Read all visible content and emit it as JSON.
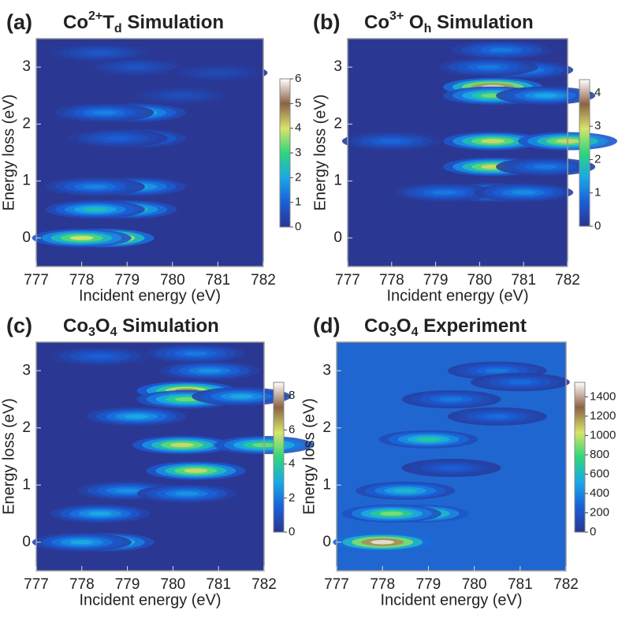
{
  "chart_data": [
    {
      "type": "heatmap",
      "panel": "(a)",
      "title": [
        {
          "text": "Co"
        },
        {
          "text": "2+",
          "shift": "super"
        },
        {
          "text": "T"
        },
        {
          "text": "d",
          "shift": "sub"
        },
        {
          "text": " Simulation"
        }
      ],
      "xlabel": "Incident energy (eV)",
      "ylabel": "Energy loss (eV)",
      "xlim": [
        777,
        782
      ],
      "xticks": [
        777,
        778,
        779,
        780,
        781,
        782
      ],
      "ylim": [
        -0.5,
        3.5
      ],
      "yticks": [
        0,
        1,
        2,
        3
      ],
      "x": [
        778.5,
        778.0,
        779.0,
        778.3,
        779.2,
        778.3,
        779.2,
        778.5,
        779.2,
        778.8,
        778.4,
        779.2,
        780.2,
        781.0
      ],
      "y": [
        0,
        0,
        0.5,
        0.5,
        0.9,
        0.9,
        2.2,
        2.2,
        1.75,
        1.75,
        3.25,
        3.0,
        2.5,
        2.9
      ],
      "values": [
        6,
        4,
        3,
        2.5,
        2.2,
        1.5,
        2.5,
        1.5,
        2,
        1,
        0.8,
        0.7,
        0.6,
        0.5
      ],
      "zlim": [
        0,
        6
      ],
      "zticks": [
        0,
        1,
        2,
        3,
        4,
        5,
        6
      ],
      "colors": [
        "#2a3590",
        "#1a5fd8",
        "#1aa8e8",
        "#2ed67a",
        "#d8e46a",
        "#8c6244",
        "#ffffff"
      ],
      "background": "#2b3893"
    },
    {
      "type": "heatmap",
      "panel": "(b)",
      "title": [
        {
          "text": "Co"
        },
        {
          "text": "3+",
          "shift": "super"
        },
        {
          "text": " O"
        },
        {
          "text": "h",
          "shift": "sub"
        },
        {
          "text": " Simulation"
        }
      ],
      "xlabel": "Incident energy (eV)",
      "ylabel": "Energy loss (eV)",
      "xlim": [
        777,
        782
      ],
      "xticks": [
        777,
        778,
        779,
        780,
        781,
        782
      ],
      "ylim": [
        -0.5,
        3.5
      ],
      "yticks": [
        0,
        1,
        2,
        3
      ],
      "x": [
        780.3,
        780.3,
        781.5,
        780.3,
        782.0,
        778.0,
        780.3,
        781.5,
        780.3,
        779.2,
        781.0,
        780.5,
        781.0,
        780.2
      ],
      "y": [
        2.65,
        2.5,
        2.5,
        1.7,
        1.7,
        1.7,
        1.25,
        1.25,
        0.8,
        0.8,
        0.8,
        3.3,
        2.95,
        3.0
      ],
      "values": [
        4.2,
        2.5,
        1.5,
        3,
        3,
        0.8,
        3,
        1,
        2,
        1,
        1.2,
        1,
        1.2,
        1
      ],
      "zlim": [
        0,
        4.4
      ],
      "zticks": [
        0,
        1,
        2,
        3,
        4
      ],
      "colors": [
        "#2a3590",
        "#1a5fd8",
        "#1aa8e8",
        "#2ed67a",
        "#d8e46a",
        "#8c6244",
        "#ffffff"
      ],
      "background": "#2b3893"
    },
    {
      "type": "heatmap",
      "panel": "(c)",
      "title": [
        {
          "text": "Co"
        },
        {
          "text": "3",
          "shift": "sub"
        },
        {
          "text": "O"
        },
        {
          "text": "4",
          "shift": "sub"
        },
        {
          "text": " Simulation"
        }
      ],
      "xlabel": "Incident energy (eV)",
      "ylabel": "Energy loss (eV)",
      "xlim": [
        777,
        782
      ],
      "xticks": [
        777,
        778,
        779,
        780,
        781,
        782
      ],
      "ylim": [
        -0.5,
        3.5
      ],
      "yticks": [
        0,
        1,
        2,
        3
      ],
      "x": [
        778.5,
        778.0,
        778.4,
        779.0,
        780.3,
        780.5,
        780.2,
        782.0,
        779.2,
        780.3,
        780.3,
        781.5,
        780.8,
        780.5,
        778.4
      ],
      "y": [
        0,
        0,
        0.5,
        0.9,
        0.85,
        1.25,
        1.7,
        1.7,
        2.2,
        2.65,
        2.5,
        2.55,
        3.0,
        3.3,
        3.25
      ],
      "values": [
        5,
        3,
        3,
        2.5,
        2.5,
        6,
        6,
        5,
        3,
        7,
        5,
        3,
        2.5,
        2,
        1.5
      ],
      "zlim": [
        0,
        8.8
      ],
      "zticks": [
        0,
        2,
        4,
        6,
        8
      ],
      "colors": [
        "#2a3590",
        "#1a5fd8",
        "#1aa8e8",
        "#2ed67a",
        "#d8e46a",
        "#8c6244",
        "#ffffff"
      ],
      "background": "#2b3893"
    },
    {
      "type": "heatmap",
      "panel": "(d)",
      "title": [
        {
          "text": "Co"
        },
        {
          "text": "3",
          "shift": "sub"
        },
        {
          "text": "O"
        },
        {
          "text": "4",
          "shift": "sub"
        },
        {
          "text": " Experiment"
        }
      ],
      "xlabel": "Incident energy (eV)",
      "ylabel": "Energy loss (eV)",
      "xlim": [
        777,
        782
      ],
      "xticks": [
        777,
        778,
        779,
        780,
        781,
        782
      ],
      "ylim": [
        -0.5,
        3.5
      ],
      "yticks": [
        0,
        1,
        2,
        3
      ],
      "x": [
        778.0,
        778.8,
        778.2,
        778.5,
        779.0,
        779.5,
        780.5,
        779.5,
        780.5,
        781.0
      ],
      "y": [
        0,
        0.5,
        0.5,
        0.9,
        1.8,
        2.5,
        3.0,
        1.3,
        2.2,
        2.8
      ],
      "values": [
        1500,
        1000,
        900,
        600,
        700,
        350,
        350,
        250,
        300,
        300
      ],
      "zlim": [
        0,
        1550
      ],
      "zticks": [
        0,
        200,
        400,
        600,
        800,
        1000,
        1200,
        1400
      ],
      "colors": [
        "#2a3590",
        "#1a5fd8",
        "#1aa8e8",
        "#2ed67a",
        "#d8e46a",
        "#8c6244",
        "#ffffff"
      ],
      "background": "#1f66d0"
    }
  ]
}
